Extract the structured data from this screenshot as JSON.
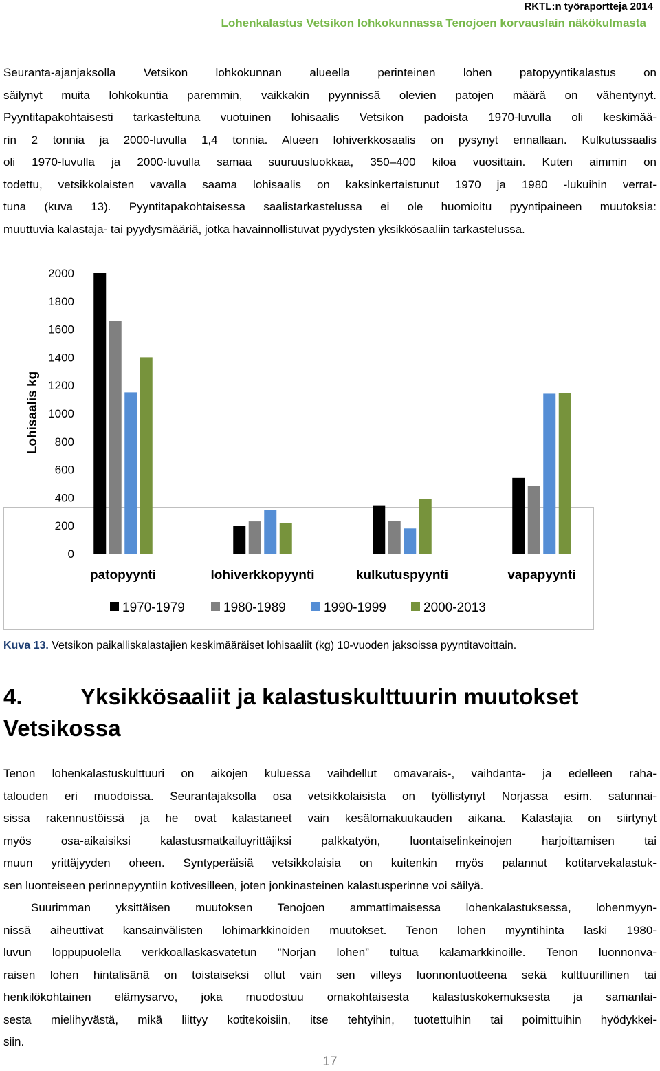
{
  "header": {
    "series": "RKTL:n työraportteja 2014",
    "title": "Lohenkalastus Vetsikon lohkokunnassa Tenojoen korvauslain näkökulmasta"
  },
  "paragraphs": [
    {
      "lines": [
        "Seuranta-ajanjaksolla Vetsikon lohkokunnan alueella perinteinen lohen patopyyntikalastus on",
        "säilynyt muita lohkokuntia paremmin, vaikkakin pyynnissä olevien patojen määrä on vähentynyt.",
        "Pyyntitapakohtaisesti tarkasteltuna vuotuinen lohisaalis Vetsikon padoista 1970-luvulla oli keskimää-",
        "rin 2 tonnia ja 2000-luvulla 1,4 tonnia. Alueen lohiverkkosaalis on pysynyt ennallaan. Kulkutussaalis",
        "oli 1970-luvulla ja 2000-luvulla samaa suuruusluokkaa, 350–400 kiloa vuosittain. Kuten aimmin on",
        "todettu, vetsikkolaisten vavalla saama lohisaalis on kaksinkertaistunut 1970 ja 1980 -lukuihin verrat-",
        "tuna (kuva 13). Pyyntitapakohtaisessa saalistarkastelussa ei ole huomioitu pyyntipaineen muutoksia:",
        "muuttuvia kalastaja- tai pyydysmääriä, jotka havainnollistuvat pyydysten yksikkösaaliin tarkastelussa."
      ]
    },
    {
      "lines": [
        "Tenon lohenkalastuskulttuuri on aikojen kuluessa vaihdellut omavarais-, vaihdanta- ja edelleen raha-",
        "talouden eri muodoissa. Seurantajaksolla osa vetsikkolaisista on työllistynyt Norjassa esim. satunnai-",
        "sissa rakennustöissä ja he ovat kalastaneet vain kesälomakuukauden aikana. Kalastajia on siirtynyt",
        "myös osa-aikaisiksi kalastusmatkailuyrittäjiksi palkkatyön, luontaiselinkeinojen harjoittamisen tai",
        "muun yrittäjyyden oheen. Syntyperäisiä vetsikkolaisia on kuitenkin myös palannut kotitarvekalastuk-",
        "sen luonteiseen perinnepyyntiin kotivesilleen, joten jonkinasteinen kalastusperinne voi säilyä."
      ]
    },
    {
      "lines": [
        "Suurimman yksittäisen muutoksen Tenojoen ammattimaisessa lohenkalastuksessa, lohenmyyn-",
        "nissä aiheuttivat kansainvälisten lohimarkkinoiden muutokset. Tenon lohen myyntihinta laski 1980-",
        "luvun loppupuolella verkkoallaskasvatetun ”Norjan lohen” tultua kalamarkkinoille. Tenon luonnonva-",
        "raisen lohen hintalisänä on toistaiseksi ollut vain sen villeys luonnontuotteena sekä kulttuurillinen tai",
        "henkilökohtainen elämysarvo, joka muodostuu omakohtaisesta kalastuskokemuksesta ja samanlai-",
        "sesta mielihyvästä, mikä liittyy kotitekoisiin, itse tehtyihin, tuotettuihin tai poimittuihin hyödykkei-",
        "siin."
      ]
    }
  ],
  "chart_data": {
    "type": "bar",
    "y_label": "Lohisaalis kg",
    "categories": [
      "patopyynti",
      "lohiverkkopyynti",
      "kulkutuspyynti",
      "vapapyynti"
    ],
    "series": [
      {
        "name": "1970-1979",
        "color": "#000000",
        "values": [
          2000,
          200,
          345,
          540
        ]
      },
      {
        "name": "1980-1989",
        "color": "#808080",
        "values": [
          1660,
          230,
          235,
          485
        ]
      },
      {
        "name": "1990-1999",
        "color": "#558ed5",
        "values": [
          1150,
          310,
          180,
          1140
        ]
      },
      {
        "name": "2000-2013",
        "color": "#77933c",
        "values": [
          1400,
          220,
          390,
          1145
        ]
      }
    ],
    "ylim": [
      0,
      2000
    ],
    "yticks": [
      0,
      200,
      400,
      600,
      800,
      1000,
      1200,
      1400,
      1600,
      1800,
      2000
    ],
    "grid": false,
    "legend": "bottom"
  },
  "caption": {
    "label": "Kuva 13.",
    "text": "Vetsikon paikalliskalastajien keskimääräiset lohisaaliit (kg) 10-vuoden jaksoissa pyyntitavoittain."
  },
  "heading": {
    "number": "4.",
    "lines": [
      "Yksikkösaaliit ja kalastuskulttuurin muutokset",
      "Vetsikossa"
    ]
  },
  "page_number": "17"
}
